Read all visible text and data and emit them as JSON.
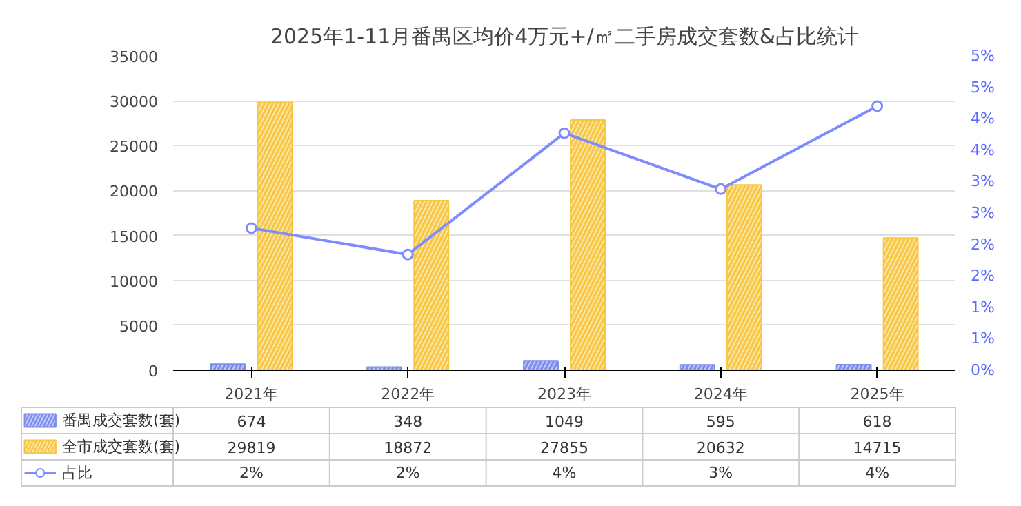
{
  "chart_data": {
    "type": "bar",
    "title": "2025年1-11月番禺区均价4万元+/㎡二手房成交套数&占比统计",
    "categories": [
      "2021年",
      "2022年",
      "2023年",
      "2024年",
      "2025年"
    ],
    "series": [
      {
        "name": "番禺成交套数(套)",
        "type": "bar",
        "color": "#7d8cf0",
        "values": [
          674,
          348,
          1049,
          595,
          618
        ],
        "value_labels": [
          "674",
          "348",
          "1049",
          "595",
          "618"
        ]
      },
      {
        "name": "全市成交套数(套)",
        "type": "bar",
        "color": "#f7c744",
        "values": [
          29819,
          18872,
          27855,
          20632,
          14715
        ],
        "value_labels": [
          "29819",
          "18872",
          "27855",
          "20632",
          "14715"
        ]
      },
      {
        "name": "占比",
        "type": "line",
        "axis": "y2",
        "color": "#7f8cff",
        "marker": "circle",
        "values": [
          2.26,
          1.84,
          3.77,
          2.88,
          4.2
        ],
        "value_labels": [
          "2%",
          "2%",
          "4%",
          "3%",
          "4%"
        ]
      }
    ],
    "ylim": [
      0,
      35000
    ],
    "yticks": [
      0,
      5000,
      10000,
      15000,
      20000,
      25000,
      30000,
      35000
    ],
    "y2lim": [
      0,
      5
    ],
    "y2ticks": [
      {
        "value": 0,
        "label": "0%"
      },
      {
        "value": 0.5,
        "label": "1%"
      },
      {
        "value": 1,
        "label": "1%"
      },
      {
        "value": 1.5,
        "label": "2%"
      },
      {
        "value": 2,
        "label": "2%"
      },
      {
        "value": 2.5,
        "label": "3%"
      },
      {
        "value": 3,
        "label": "3%"
      },
      {
        "value": 3.5,
        "label": "4%"
      },
      {
        "value": 4,
        "label": "4%"
      },
      {
        "value": 4.5,
        "label": "5%"
      },
      {
        "value": 5,
        "label": "5%"
      }
    ],
    "grid": "y",
    "legend": "bottom"
  }
}
